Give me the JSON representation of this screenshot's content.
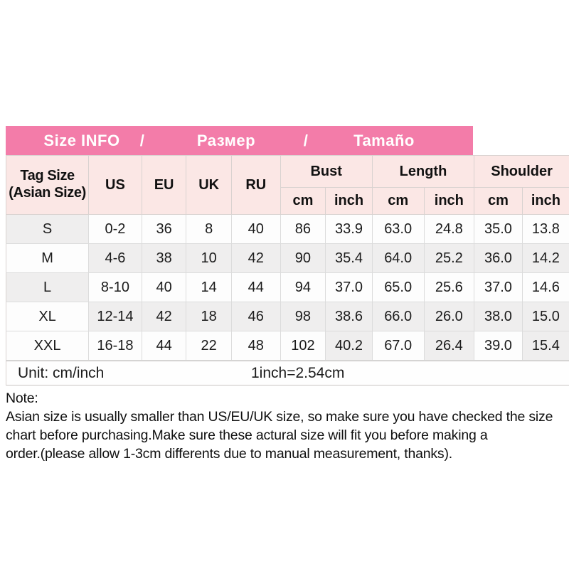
{
  "title_bar": {
    "segments": [
      "Size INFO",
      "/",
      "Размер",
      "/",
      "Tamaño"
    ]
  },
  "table": {
    "header": {
      "tag_line1": "Tag Size",
      "tag_line2": "(Asian Size)",
      "size_systems": [
        "US",
        "EU",
        "UK",
        "RU"
      ],
      "groups": [
        {
          "label": "Bust"
        },
        {
          "label": "Length"
        },
        {
          "label": "Shoulder"
        }
      ],
      "subunits": [
        "cm",
        "inch"
      ]
    },
    "rows": [
      {
        "cells": [
          "S",
          "0-2",
          "36",
          "8",
          "40",
          "86",
          "33.9",
          "63.0",
          "24.8",
          "35.0",
          "13.8"
        ]
      },
      {
        "cells": [
          "M",
          "4-6",
          "38",
          "10",
          "42",
          "90",
          "35.4",
          "64.0",
          "25.2",
          "36.0",
          "14.2"
        ]
      },
      {
        "cells": [
          "L",
          "8-10",
          "40",
          "14",
          "44",
          "94",
          "37.0",
          "65.0",
          "25.6",
          "37.0",
          "14.6"
        ]
      },
      {
        "cells": [
          "XL",
          "12-14",
          "42",
          "18",
          "46",
          "98",
          "38.6",
          "66.0",
          "26.0",
          "38.0",
          "15.0"
        ]
      },
      {
        "cells": [
          "XXL",
          "16-18",
          "44",
          "22",
          "48",
          "102",
          "40.2",
          "67.0",
          "26.4",
          "39.0",
          "15.4"
        ]
      }
    ]
  },
  "unit_row": {
    "label": "Unit: cm/inch",
    "conversion": "1inch=2.54cm"
  },
  "note": {
    "heading": "Note:",
    "lines": [
      "Asian size is usually smaller than US/EU/UK size, so make sure you have checked the size",
      "chart before purchasing.Make sure these actural size will fit you before making a",
      "order.(please allow 1-3cm differents due to manual measurement, thanks)."
    ]
  },
  "colors": {
    "banner_pink": "#F37CA9",
    "subheader_pink": "#FBE7E5",
    "row_gray": "#EFEEEE",
    "row_white": "#FDFDFD",
    "border": "#D9D2D0",
    "text": "#1B1B1B",
    "banner_text": "#FFFFFF"
  }
}
